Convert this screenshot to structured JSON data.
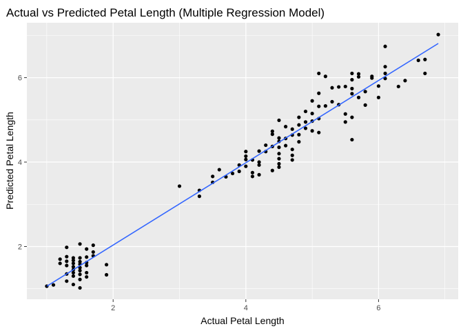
{
  "chart_data": {
    "type": "scatter",
    "title": "Actual vs Predicted Petal Length (Multiple Regression Model)",
    "xlabel": "Actual Petal Length",
    "ylabel": "Predicted Petal Length",
    "xlim": [
      0.7,
      7.2
    ],
    "ylim": [
      0.75,
      7.3
    ],
    "xticks": [
      2,
      4,
      6
    ],
    "yticks": [
      2,
      4,
      6
    ],
    "grid": true,
    "panel_background": "#ebebeb",
    "grid_color": "#ffffff",
    "point_color": "#000000",
    "trend_color": "#3366ff",
    "trend_line": {
      "x": [
        1.0,
        6.9
      ],
      "y": [
        1.06,
        6.81
      ]
    },
    "points": [
      [
        1.0,
        1.06
      ],
      [
        1.1,
        1.09
      ],
      [
        1.2,
        1.6
      ],
      [
        1.2,
        1.7
      ],
      [
        1.3,
        1.18
      ],
      [
        1.3,
        1.35
      ],
      [
        1.3,
        1.55
      ],
      [
        1.3,
        1.65
      ],
      [
        1.3,
        1.76
      ],
      [
        1.3,
        1.98
      ],
      [
        1.4,
        1.1
      ],
      [
        1.4,
        1.3
      ],
      [
        1.4,
        1.38
      ],
      [
        1.4,
        1.45
      ],
      [
        1.4,
        1.52
      ],
      [
        1.4,
        1.6
      ],
      [
        1.4,
        1.67
      ],
      [
        1.4,
        1.73
      ],
      [
        1.5,
        1.22
      ],
      [
        1.5,
        1.34
      ],
      [
        1.5,
        1.43
      ],
      [
        1.5,
        1.5
      ],
      [
        1.5,
        1.58
      ],
      [
        1.5,
        1.64
      ],
      [
        1.5,
        1.73
      ],
      [
        1.5,
        2.06
      ],
      [
        1.5,
        1.02
      ],
      [
        1.6,
        1.28
      ],
      [
        1.6,
        1.38
      ],
      [
        1.6,
        1.55
      ],
      [
        1.6,
        1.75
      ],
      [
        1.6,
        1.94
      ],
      [
        1.6,
        1.62
      ],
      [
        1.7,
        1.78
      ],
      [
        1.7,
        1.87
      ],
      [
        1.7,
        2.03
      ],
      [
        1.9,
        1.33
      ],
      [
        1.9,
        1.57
      ],
      [
        3.0,
        3.43
      ],
      [
        3.3,
        3.19
      ],
      [
        3.3,
        3.33
      ],
      [
        3.5,
        3.52
      ],
      [
        3.5,
        3.66
      ],
      [
        3.6,
        3.82
      ],
      [
        3.7,
        3.65
      ],
      [
        3.8,
        3.73
      ],
      [
        3.9,
        3.78
      ],
      [
        3.9,
        3.93
      ],
      [
        4.0,
        3.9
      ],
      [
        4.0,
        4.06
      ],
      [
        4.0,
        4.14
      ],
      [
        4.0,
        4.25
      ],
      [
        4.1,
        3.66
      ],
      [
        4.1,
        3.75
      ],
      [
        4.1,
        4.05
      ],
      [
        4.2,
        3.7
      ],
      [
        4.2,
        3.93
      ],
      [
        4.2,
        4.0
      ],
      [
        4.2,
        4.26
      ],
      [
        4.3,
        4.25
      ],
      [
        4.3,
        4.4
      ],
      [
        4.4,
        3.8
      ],
      [
        4.4,
        4.37
      ],
      [
        4.4,
        4.66
      ],
      [
        4.4,
        4.73
      ],
      [
        4.5,
        3.88
      ],
      [
        4.5,
        3.96
      ],
      [
        4.5,
        4.08
      ],
      [
        4.5,
        4.2
      ],
      [
        4.5,
        4.35
      ],
      [
        4.5,
        4.49
      ],
      [
        4.5,
        4.57
      ],
      [
        4.5,
        4.99
      ],
      [
        4.6,
        4.39
      ],
      [
        4.6,
        4.56
      ],
      [
        4.6,
        4.84
      ],
      [
        4.7,
        4.05
      ],
      [
        4.7,
        4.16
      ],
      [
        4.7,
        4.3
      ],
      [
        4.7,
        4.64
      ],
      [
        4.7,
        4.78
      ],
      [
        4.8,
        4.48
      ],
      [
        4.8,
        4.65
      ],
      [
        4.8,
        4.88
      ],
      [
        4.8,
        5.06
      ],
      [
        4.9,
        4.8
      ],
      [
        4.9,
        4.95
      ],
      [
        4.9,
        5.2
      ],
      [
        5.0,
        4.97
      ],
      [
        5.0,
        5.15
      ],
      [
        5.0,
        5.45
      ],
      [
        5.0,
        4.74
      ],
      [
        5.1,
        4.7
      ],
      [
        5.1,
        5.03
      ],
      [
        5.1,
        5.32
      ],
      [
        5.1,
        5.63
      ],
      [
        5.1,
        6.1
      ],
      [
        5.2,
        5.33
      ],
      [
        5.2,
        6.03
      ],
      [
        5.3,
        5.43
      ],
      [
        5.3,
        5.76
      ],
      [
        5.4,
        5.36
      ],
      [
        5.4,
        5.78
      ],
      [
        5.5,
        4.95
      ],
      [
        5.5,
        5.14
      ],
      [
        5.5,
        5.79
      ],
      [
        5.6,
        4.53
      ],
      [
        5.6,
        5.06
      ],
      [
        5.6,
        5.62
      ],
      [
        5.6,
        5.74
      ],
      [
        5.6,
        5.95
      ],
      [
        5.6,
        6.1
      ],
      [
        5.7,
        5.53
      ],
      [
        5.7,
        6.02
      ],
      [
        5.7,
        6.09
      ],
      [
        5.8,
        5.35
      ],
      [
        5.8,
        5.67
      ],
      [
        5.9,
        5.99
      ],
      [
        5.9,
        6.03
      ],
      [
        6.0,
        5.53
      ],
      [
        6.0,
        5.8
      ],
      [
        6.1,
        5.98
      ],
      [
        6.1,
        6.1
      ],
      [
        6.1,
        6.26
      ],
      [
        6.1,
        6.74
      ],
      [
        6.3,
        5.79
      ],
      [
        6.4,
        5.93
      ],
      [
        6.6,
        6.41
      ],
      [
        6.7,
        6.1
      ],
      [
        6.7,
        6.43
      ],
      [
        6.9,
        7.02
      ]
    ]
  }
}
